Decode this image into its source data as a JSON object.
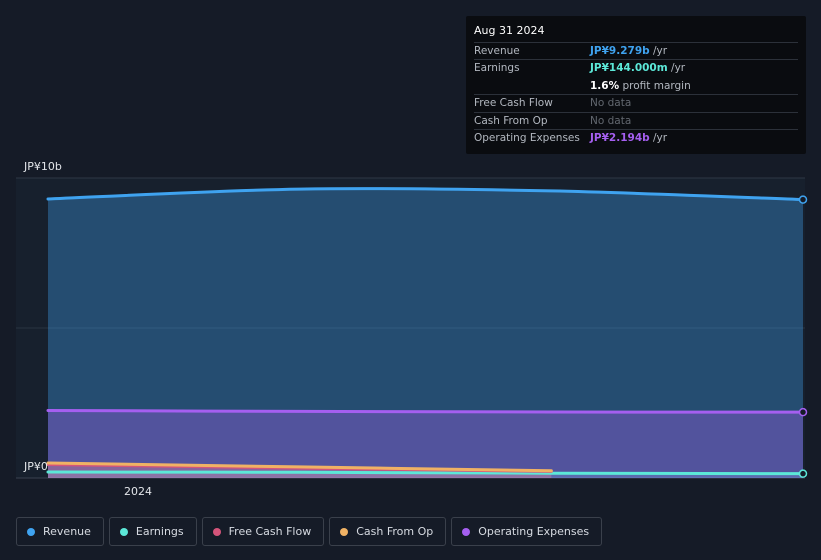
{
  "tooltip": {
    "date": "Aug 31 2024",
    "rows": [
      {
        "label": "Revenue",
        "value": "JP¥9.279b",
        "unit": "/yr",
        "color": "#3fa3f0"
      },
      {
        "label": "Earnings",
        "value": "JP¥144.000m",
        "unit": "/yr",
        "color": "#5ce8d8"
      },
      {
        "label": "",
        "value": "1.6%",
        "unit": "profit margin",
        "color": "#ffffff"
      },
      {
        "label": "Free Cash Flow",
        "value": "No data",
        "unit": "",
        "color": ""
      },
      {
        "label": "Cash From Op",
        "value": "No data",
        "unit": "",
        "color": ""
      },
      {
        "label": "Operating Expenses",
        "value": "JP¥2.194b",
        "unit": "/yr",
        "color": "#a55ff0"
      }
    ]
  },
  "chart_data": {
    "type": "area",
    "y_unit": "JP¥ billions",
    "ylim": [
      0,
      10
    ],
    "y_tick_labels": [
      "JP¥10b",
      "JP¥0"
    ],
    "x_tick_labels": [
      "2024"
    ],
    "x": [
      "2023-11-30",
      "2024-02-29",
      "2024-05-31",
      "2024-08-31"
    ],
    "series": [
      {
        "name": "Revenue",
        "color": "#3fa3f0",
        "values": [
          9.3,
          9.63,
          9.57,
          9.28
        ]
      },
      {
        "name": "Earnings",
        "color": "#5ce8d8",
        "values": [
          0.2,
          0.19,
          0.16,
          0.144
        ]
      },
      {
        "name": "Free Cash Flow",
        "color": "#d4547a",
        "values": [
          0.45,
          0.33,
          0.22,
          null
        ]
      },
      {
        "name": "Cash From Op",
        "color": "#f0b264",
        "values": [
          0.5,
          0.37,
          0.24,
          null
        ]
      },
      {
        "name": "Operating Expenses",
        "color": "#a55ff0",
        "values": [
          2.25,
          2.22,
          2.2,
          2.194
        ]
      }
    ],
    "legend_position": "bottom"
  }
}
